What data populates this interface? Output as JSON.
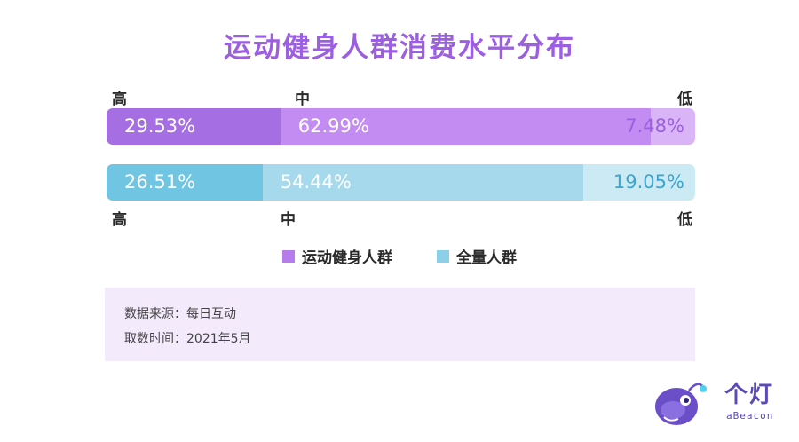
{
  "title": "运动健身人群消费水平分布",
  "top_labels": {
    "high": "高",
    "mid": "中",
    "low": "低"
  },
  "bottom_labels": {
    "high": "高",
    "mid": "中",
    "low": "低"
  },
  "colors": {
    "fitness_high": "#a56ee3",
    "fitness_mid": "#c38cf2",
    "fitness_low": "#d9b4f7",
    "all_high": "#6fc5e2",
    "all_mid": "#a6d9ec",
    "all_low": "#cbeaf4",
    "accent_purple": "#9c5fe0",
    "accent_blue": "#3aa6cf"
  },
  "chart_data": {
    "type": "bar",
    "orientation": "horizontal-stacked-100",
    "title": "运动健身人群消费水平分布",
    "categories": [
      "高",
      "中",
      "低"
    ],
    "series": [
      {
        "name": "运动健身人群",
        "values": [
          29.53,
          62.99,
          7.48
        ],
        "labels": [
          "29.53%",
          "62.99%",
          "7.48%"
        ]
      },
      {
        "name": "全量人群",
        "values": [
          26.51,
          54.44,
          19.05
        ],
        "labels": [
          "26.51%",
          "54.44%",
          "19.05%"
        ]
      }
    ],
    "unit": "%",
    "legend_position": "bottom"
  },
  "legend": [
    {
      "label": "运动健身人群",
      "color": "#b67ceb"
    },
    {
      "label": "全量人群",
      "color": "#8ccfe8"
    }
  ],
  "source": {
    "line1": "数据来源：每日互动",
    "line2": "取数时间：2021年5月"
  },
  "logo": {
    "cn": "个灯",
    "en": "aBeacon"
  }
}
